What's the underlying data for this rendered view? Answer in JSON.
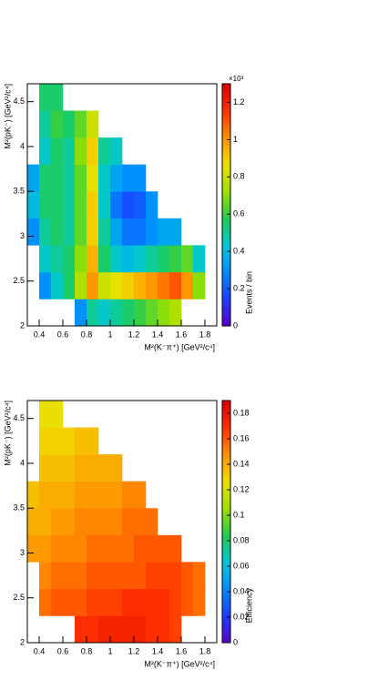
{
  "chart_data": [
    {
      "type": "heatmap",
      "xlabel": "M²(K⁻π⁺) [GeV²/c⁴]",
      "ylabel": "M²(pK⁻) [GeV²/c⁴]",
      "zlabel": "Events / bin",
      "z_exponent_label": "×10³",
      "xlim": [
        0.3,
        1.9
      ],
      "ylim": [
        2,
        4.7
      ],
      "zlim": [
        0,
        1300
      ],
      "xticks": [
        0.4,
        0.6,
        0.8,
        1,
        1.2,
        1.4,
        1.6,
        1.8
      ],
      "yticks": [
        2,
        2.5,
        3,
        3.5,
        4,
        4.5
      ],
      "zticks": [
        0,
        {
          "value": 200,
          "label": "0.2"
        },
        {
          "value": 400,
          "label": "0.4"
        },
        {
          "value": 600,
          "label": "0.6"
        },
        {
          "value": 800,
          "label": "0.8"
        },
        {
          "value": 1000,
          "label": "1"
        },
        {
          "value": 1200,
          "label": "1.2"
        }
      ],
      "xbins": [
        0.3,
        0.4,
        0.5,
        0.6,
        0.7,
        0.8,
        0.9,
        1.0,
        1.1,
        1.2,
        1.3,
        1.4,
        1.5,
        1.6,
        1.7,
        1.8,
        1.9
      ],
      "ybins": [
        2.0,
        2.3,
        2.6,
        2.9,
        3.2,
        3.5,
        3.8,
        4.1,
        4.4,
        4.7
      ],
      "colorscale": [
        "#5a00c8",
        "#1c3cff",
        "#008cff",
        "#00c8d8",
        "#20cc50",
        "#a0e000",
        "#f0e000",
        "#ff9000",
        "#ff3000",
        "#dc0000"
      ],
      "values": [
        [
          null,
          null,
          null,
          null,
          300,
          500,
          450,
          500,
          550,
          600,
          650,
          700,
          750,
          null,
          null,
          null
        ],
        [
          null,
          300,
          450,
          550,
          750,
          1000,
          800,
          850,
          900,
          950,
          1000,
          1050,
          1100,
          1000,
          700,
          null
        ],
        [
          null,
          450,
          500,
          550,
          700,
          950,
          550,
          450,
          400,
          450,
          500,
          550,
          600,
          650,
          450,
          null
        ],
        [
          300,
          500,
          550,
          500,
          650,
          900,
          500,
          350,
          250,
          250,
          300,
          350,
          350,
          null,
          null,
          null
        ],
        [
          400,
          550,
          550,
          500,
          650,
          900,
          450,
          250,
          180,
          200,
          300,
          null,
          null,
          null,
          null,
          null
        ],
        [
          350,
          550,
          550,
          500,
          650,
          850,
          450,
          350,
          300,
          300,
          null,
          null,
          null,
          null,
          null,
          null
        ],
        [
          null,
          450,
          550,
          500,
          700,
          900,
          500,
          450,
          null,
          null,
          null,
          null,
          null,
          null,
          null,
          null
        ],
        [
          null,
          500,
          600,
          550,
          650,
          800,
          null,
          null,
          null,
          null,
          null,
          null,
          null,
          null,
          null,
          null
        ],
        [
          null,
          550,
          550,
          null,
          null,
          null,
          null,
          null,
          null,
          null,
          null,
          null,
          null,
          null,
          null,
          null
        ]
      ]
    },
    {
      "type": "heatmap",
      "xlabel": "M²(K⁻π⁺) [GeV²/c⁴]",
      "ylabel": "M²(pK⁻) [GeV²/c⁴]",
      "zlabel": "Efficiency",
      "xlim": [
        0.3,
        1.9
      ],
      "ylim": [
        2,
        4.7
      ],
      "zlim": [
        0,
        0.19
      ],
      "xticks": [
        0.4,
        0.6,
        0.8,
        1,
        1.2,
        1.4,
        1.6,
        1.8
      ],
      "yticks": [
        2,
        2.5,
        3,
        3.5,
        4,
        4.5
      ],
      "zticks": [
        0,
        0.02,
        0.04,
        0.06,
        0.08,
        0.1,
        0.12,
        0.14,
        0.16,
        0.18
      ],
      "xbins": [
        0.3,
        0.4,
        0.5,
        0.6,
        0.7,
        0.8,
        0.9,
        1.0,
        1.1,
        1.2,
        1.3,
        1.4,
        1.5,
        1.6,
        1.7,
        1.8,
        1.9
      ],
      "ybins": [
        2.0,
        2.3,
        2.6,
        2.9,
        3.2,
        3.5,
        3.8,
        4.1,
        4.4,
        4.7
      ],
      "colorscale": [
        "#5a00c8",
        "#1c3cff",
        "#008cff",
        "#00c8d8",
        "#20cc50",
        "#a0e000",
        "#f0e000",
        "#ff9000",
        "#ff3000",
        "#dc0000"
      ],
      "values": [
        [
          null,
          null,
          null,
          null,
          0.17,
          0.17,
          0.175,
          0.175,
          0.175,
          0.175,
          0.17,
          0.17,
          0.165,
          null,
          null,
          null
        ],
        [
          null,
          0.155,
          0.16,
          0.16,
          0.16,
          0.165,
          0.165,
          0.165,
          0.17,
          0.17,
          0.17,
          0.17,
          0.165,
          0.16,
          0.155,
          null
        ],
        [
          null,
          0.15,
          0.155,
          0.155,
          0.155,
          0.16,
          0.16,
          0.16,
          0.16,
          0.16,
          0.165,
          0.165,
          0.165,
          0.16,
          0.155,
          null
        ],
        [
          0.145,
          0.145,
          0.15,
          0.15,
          0.15,
          0.155,
          0.155,
          0.155,
          0.155,
          0.16,
          0.16,
          0.16,
          0.16,
          null,
          null,
          null
        ],
        [
          0.14,
          0.14,
          0.145,
          0.145,
          0.15,
          0.15,
          0.15,
          0.15,
          0.155,
          0.155,
          0.155,
          null,
          null,
          null,
          null,
          null
        ],
        [
          0.135,
          0.14,
          0.14,
          0.14,
          0.145,
          0.145,
          0.145,
          0.145,
          0.15,
          0.15,
          null,
          null,
          null,
          null,
          null,
          null
        ],
        [
          null,
          0.135,
          0.135,
          0.135,
          0.14,
          0.14,
          0.14,
          0.14,
          null,
          null,
          null,
          null,
          null,
          null,
          null,
          null
        ],
        [
          null,
          0.13,
          0.13,
          0.13,
          0.135,
          0.135,
          null,
          null,
          null,
          null,
          null,
          null,
          null,
          null,
          null,
          null
        ],
        [
          null,
          0.125,
          0.125,
          null,
          null,
          null,
          null,
          null,
          null,
          null,
          null,
          null,
          null,
          null,
          null,
          null
        ]
      ]
    }
  ]
}
